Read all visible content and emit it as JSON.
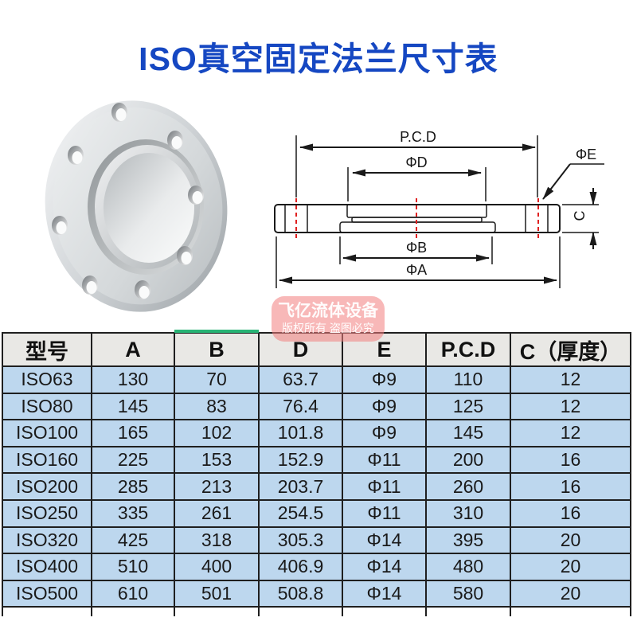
{
  "title": "ISO真空固定法兰尺寸表",
  "diagram": {
    "labels": {
      "pcd": "P.C.D",
      "d": "ΦD",
      "e": "ΦE",
      "c": "C",
      "b": "ΦB",
      "a": "ΦA"
    }
  },
  "watermark": {
    "line1": "飞亿流体设备",
    "line2": "版权所有 盗图必究"
  },
  "table": {
    "headers": [
      "型号",
      "A",
      "B",
      "D",
      "E",
      "P.C.D",
      "C（厚度）"
    ],
    "rows": [
      {
        "model": "ISO63",
        "values": [
          "130",
          "70",
          "63.7",
          "Φ9",
          "110",
          "12"
        ]
      },
      {
        "model": "ISO80",
        "values": [
          "145",
          "83",
          "76.4",
          "Φ9",
          "125",
          "12"
        ]
      },
      {
        "model": "ISO100",
        "values": [
          "165",
          "102",
          "101.8",
          "Φ9",
          "145",
          "12"
        ]
      },
      {
        "model": "ISO160",
        "values": [
          "225",
          "153",
          "152.9",
          "Φ11",
          "200",
          "16"
        ]
      },
      {
        "model": "ISO200",
        "values": [
          "285",
          "213",
          "203.7",
          "Φ11",
          "260",
          "16"
        ]
      },
      {
        "model": "ISO250",
        "values": [
          "335",
          "261",
          "254.5",
          "Φ11",
          "310",
          "16"
        ]
      },
      {
        "model": "ISO320",
        "values": [
          "425",
          "318",
          "305.3",
          "Φ14",
          "395",
          "20"
        ]
      },
      {
        "model": "ISO400",
        "values": [
          "510",
          "400",
          "406.9",
          "Φ14",
          "480",
          "20"
        ]
      },
      {
        "model": "ISO500",
        "values": [
          "610",
          "501",
          "508.8",
          "Φ14",
          "580",
          "20"
        ]
      }
    ]
  },
  "colors": {
    "title_blue": "#1547c2",
    "row_blue": "#bdd7ee",
    "header_gray": "#e9e8e5",
    "table_border": "#1f1f1f",
    "accent_green": "#27b475",
    "watermark_pink": "rgba(242,125,125,0.55)",
    "diagram_red": "#e02020"
  }
}
